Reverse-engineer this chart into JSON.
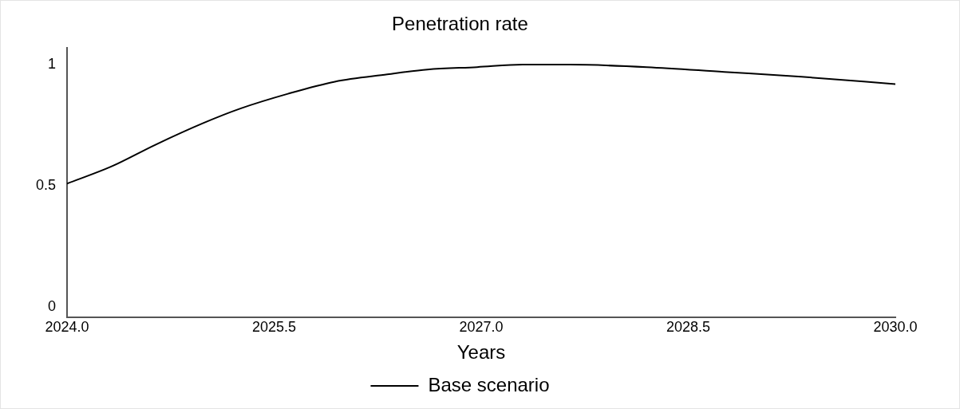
{
  "chart_data": {
    "type": "line",
    "title": "Penetration rate",
    "xlabel": "Years",
    "x": [
      2024,
      2024.32,
      2024.64,
      2024.99,
      2025.26,
      2025.6,
      2025.94,
      2026.32,
      2026.61,
      2026.97,
      2027.3,
      2027.64,
      2028.2,
      2028.76,
      2029.32,
      2030
    ],
    "series": [
      {
        "name": "Base scenario",
        "color": "#000000",
        "values": [
          0.51,
          0.58,
          0.67,
          0.76,
          0.82,
          0.88,
          0.93,
          0.96,
          0.98,
          0.99,
          1.0,
          1.0,
          0.99,
          0.97,
          0.95,
          0.92
        ]
      }
    ],
    "xlim": [
      2024,
      2030
    ],
    "xticks": [
      {
        "value": 2024,
        "label": "2024.0"
      },
      {
        "value": 2025.5,
        "label": "2025.5"
      },
      {
        "value": 2027,
        "label": "2027.0"
      },
      {
        "value": 2028.5,
        "label": "2028.5"
      },
      {
        "value": 2030,
        "label": "2030.0"
      }
    ],
    "ylim": [
      -0.04,
      1.07
    ],
    "yticks": [
      0,
      0.5,
      1
    ],
    "grid": false,
    "legend": "bottom",
    "marker": "none",
    "line_style": "solid"
  }
}
